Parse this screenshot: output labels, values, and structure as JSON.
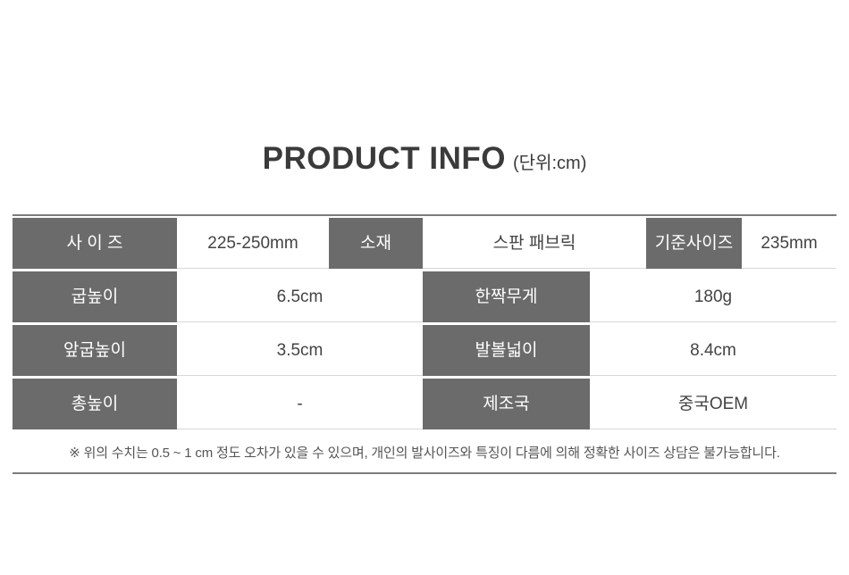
{
  "title": {
    "main": "PRODUCT INFO",
    "unit": "(단위:cm)"
  },
  "table": {
    "rows": [
      {
        "cells": [
          {
            "text": "사 이 즈"
          },
          {
            "text": "225-250mm"
          },
          {
            "text": "소재"
          },
          {
            "text": "스판 패브릭"
          },
          {
            "text": "기준사이즈"
          },
          {
            "text": "235mm"
          }
        ]
      },
      {
        "cells": [
          {
            "text": "굽높이"
          },
          {
            "text": "6.5cm"
          },
          {
            "text": "한짝무게"
          },
          {
            "text": "180g"
          }
        ]
      },
      {
        "cells": [
          {
            "text": "앞굽높이"
          },
          {
            "text": "3.5cm"
          },
          {
            "text": "발볼넓이"
          },
          {
            "text": "8.4cm"
          }
        ]
      },
      {
        "cells": [
          {
            "text": "총높이"
          },
          {
            "text": "-"
          },
          {
            "text": "제조국"
          },
          {
            "text": "중국OEM"
          }
        ]
      }
    ],
    "note": "※ 위의 수치는 0.5 ~ 1 cm 정도 오차가 있을 수 있으며, 개인의 발사이즈와 특징이 다름에 의해 정확한 사이즈 상담은 불가능합니다."
  },
  "colors": {
    "label_bg": "#6b6b6b",
    "label_text": "#ffffff",
    "value_text": "#434343",
    "table_border": "#7c7c7c",
    "row_separator": "#d8d8d8",
    "title_text": "#3a3a3a"
  }
}
